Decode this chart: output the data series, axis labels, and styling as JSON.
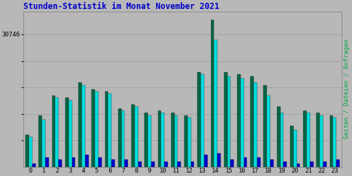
{
  "title": "Stunden-Statistik im Monat November 2021",
  "title_color": "#0000cc",
  "background_color": "#b8b8b8",
  "ylabel_right": "Seiten / Dateien / Anfragen",
  "ylabel_right_color": "#00aa44",
  "xlabel_labels": [
    "0",
    "1",
    "2",
    "3",
    "4",
    "5",
    "6",
    "7",
    "8",
    "9",
    "10",
    "11",
    "12",
    "13",
    "14",
    "15",
    "16",
    "17",
    "18",
    "19",
    "20",
    "21",
    "22",
    "23"
  ],
  "ytick_top_label": "30746",
  "ymax": 36000,
  "ytick_values": [
    6149,
    12298,
    18447,
    24596,
    30746
  ],
  "colors": {
    "seiten": "#006644",
    "dateien": "#00dddd",
    "anfragen": "#0000cc"
  },
  "seiten": [
    7500,
    12000,
    16500,
    16000,
    19500,
    18000,
    17500,
    13500,
    14500,
    12500,
    13000,
    12500,
    12000,
    22000,
    34000,
    22000,
    21500,
    21000,
    19000,
    14000,
    9500,
    13000,
    12500,
    12000
  ],
  "dateien": [
    7000,
    11000,
    16000,
    15500,
    19000,
    17500,
    17000,
    13000,
    14000,
    12000,
    12500,
    12000,
    11500,
    21500,
    29500,
    21000,
    20500,
    19500,
    16500,
    12500,
    8500,
    12500,
    12000,
    11500
  ],
  "anfragen": [
    800,
    2200,
    1800,
    2200,
    2800,
    2200,
    1800,
    1800,
    1300,
    1300,
    1300,
    1300,
    1300,
    2800,
    3200,
    1800,
    2200,
    2200,
    1800,
    1300,
    800,
    1300,
    1300,
    1800
  ]
}
